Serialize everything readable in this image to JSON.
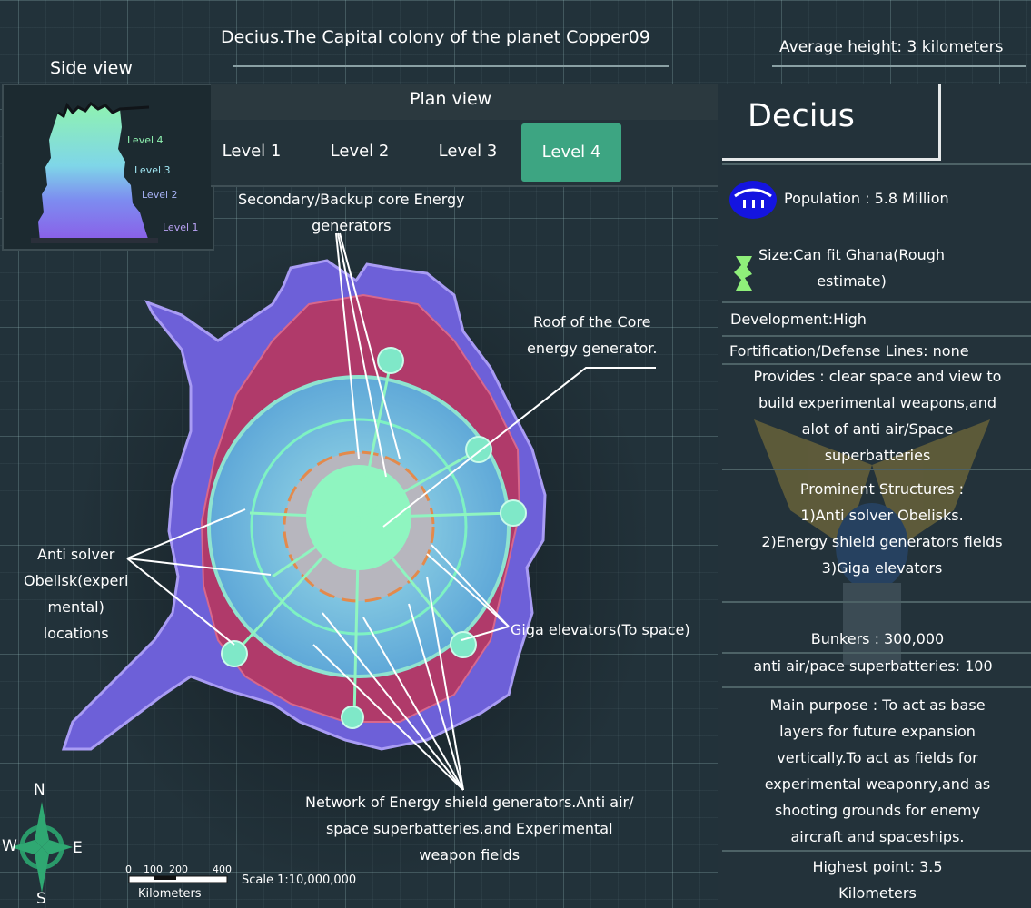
{
  "header": {
    "title": "Decius.The Capital colony of the planet Copper09",
    "average_height": "Average height: 3 kilometers"
  },
  "side_view": {
    "label": "Side view",
    "levels": [
      "Level 4",
      "Level 3",
      "Level 2",
      "Level 1"
    ]
  },
  "plan_view": {
    "title": "Plan view",
    "tabs": [
      "Level 1",
      "Level 2",
      "Level 3",
      "Level 4"
    ],
    "active_tab": "Level 4"
  },
  "annotations": {
    "secondary_generators": [
      "Secondary/Backup core Energy",
      "generators"
    ],
    "core_roof": [
      "Roof of the Core",
      "energy generator."
    ],
    "anti_solver": [
      "Anti solver",
      "Obelisk(experi",
      "mental)",
      "locations"
    ],
    "giga_elevators": [
      "Giga elevators(To space)"
    ],
    "network": [
      "Network of Energy shield generators.Anti air/",
      "space superbatteries.and Experimental",
      "weapon fields"
    ]
  },
  "compass": {
    "n": "N",
    "e": "E",
    "s": "S",
    "w": "W"
  },
  "scale": {
    "ticks": [
      "0",
      "100",
      "200",
      "400"
    ],
    "unit": "Kilometers",
    "ratio": "Scale 1:10,000,000"
  },
  "info": {
    "name": "Decius",
    "population": "Population : 5.8 Million",
    "size": [
      "Size:Can fit Ghana(Rough",
      "estimate)"
    ],
    "development": "Development:High",
    "fortification": "Fortification/Defense Lines: none",
    "provides": [
      "Provides : clear space and view to",
      "build experimental weapons,and",
      "alot of anti air/Space",
      "superbatteries"
    ],
    "prominent": [
      "Prominent Structures :",
      "1)Anti solver Obelisks.",
      "2)Energy shield generators fields",
      "3)Giga elevators"
    ],
    "bunkers": "Bunkers : 300,000",
    "superbatteries": "anti air/pace superbatteries: 100",
    "purpose": [
      "Main purpose : To act as base",
      "layers for future expansion",
      "vertically.To act as fields for",
      "experimental weaponry,and as",
      "shooting grounds for enemy",
      "aircraft and spaceships."
    ],
    "highest": [
      "Highest point: 3.5",
      "Kilometers"
    ]
  },
  "colors": {
    "background": "#22323a",
    "active_tab": "#3da582",
    "city_outer": "#6b5fd6",
    "city_core": "#8ff5c0",
    "population_icon": "#1414e0",
    "size_icon": "#8fef7a"
  }
}
